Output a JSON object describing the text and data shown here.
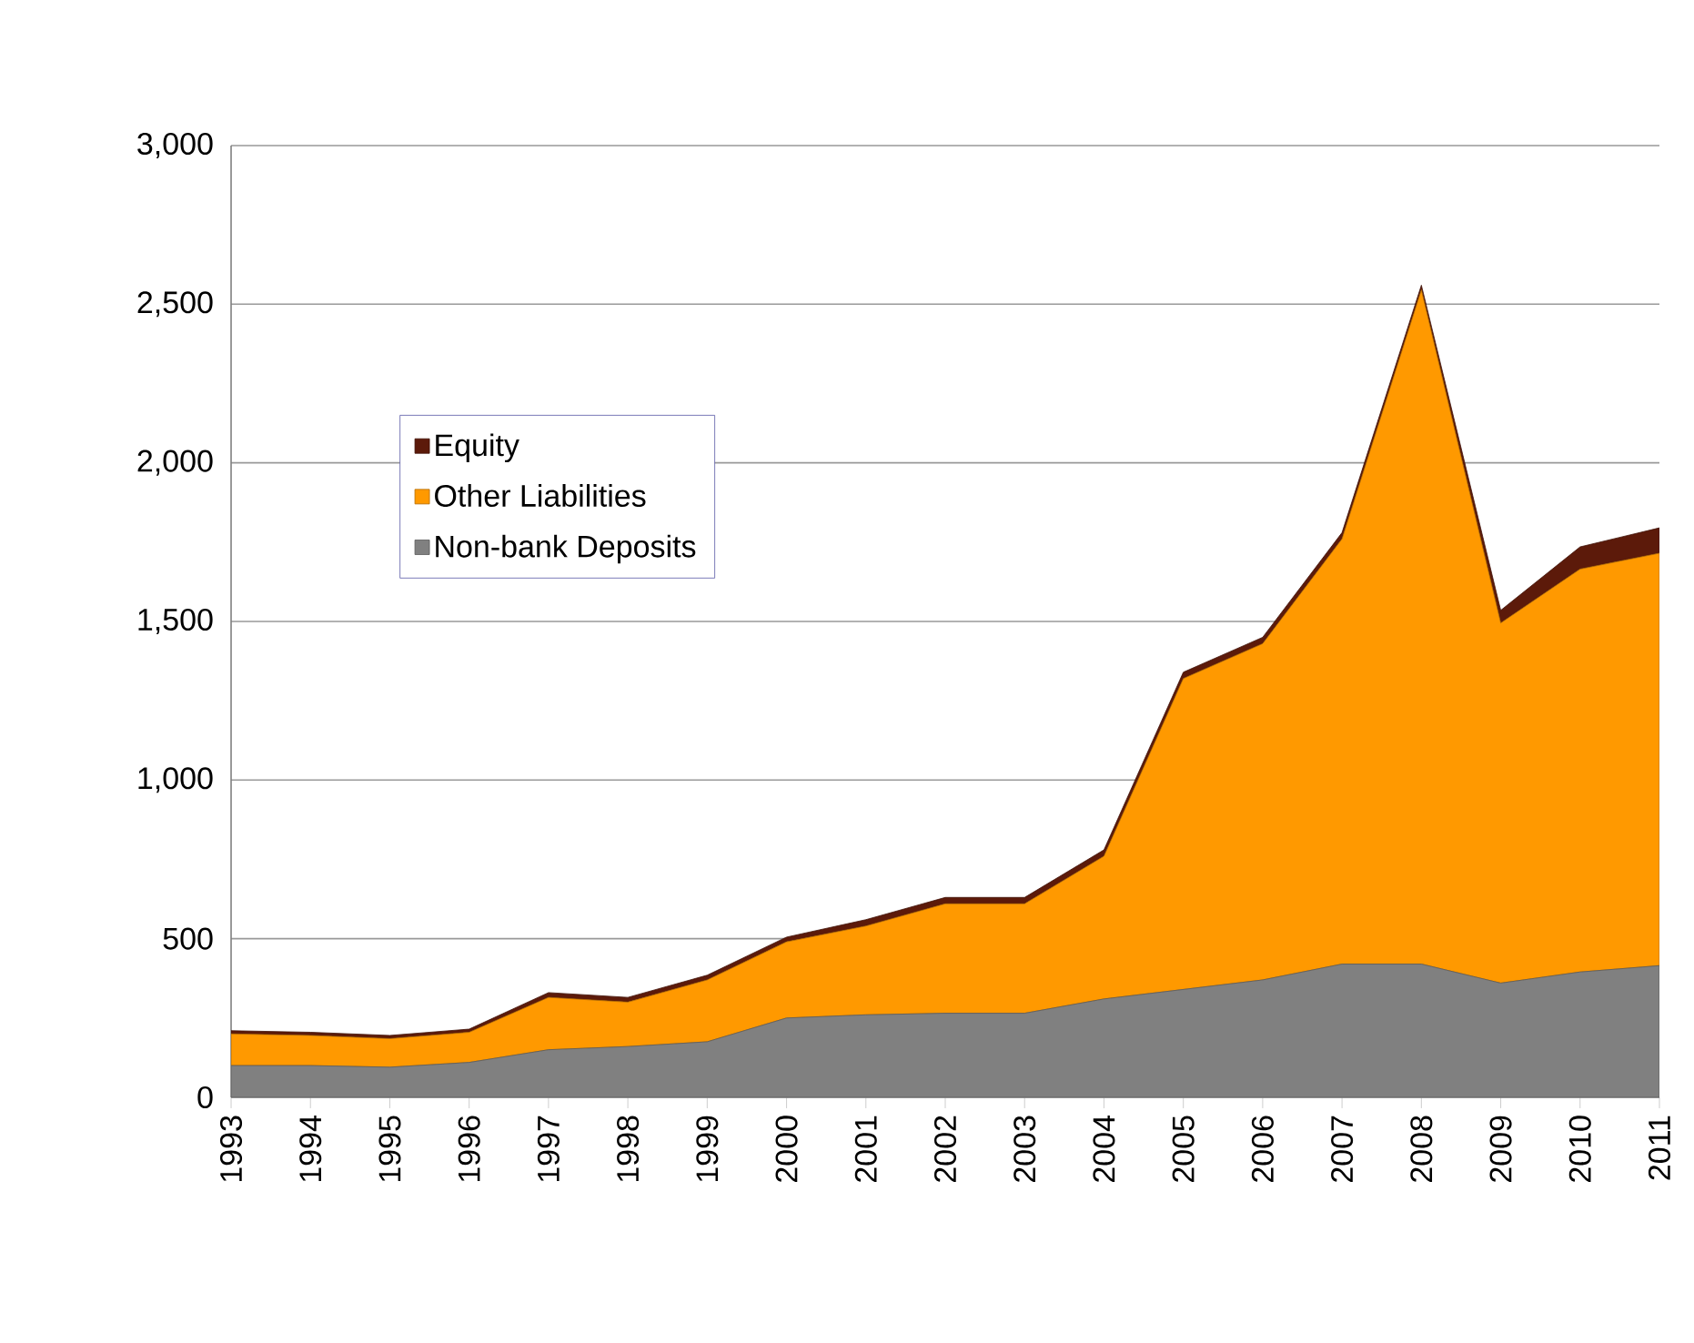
{
  "chart_data": {
    "type": "area",
    "stacked": true,
    "categories": [
      "1993",
      "1994",
      "1995",
      "1996",
      "1997",
      "1998",
      "1999",
      "2000",
      "2001",
      "2002",
      "2003",
      "2004",
      "2005",
      "2006",
      "2007",
      "2008",
      "2009",
      "2010",
      "2011"
    ],
    "series": [
      {
        "name": "Non-bank Deposits",
        "color": "#808080",
        "values": [
          100,
          100,
          95,
          110,
          150,
          160,
          175,
          250,
          260,
          265,
          265,
          310,
          340,
          370,
          420,
          420,
          360,
          395,
          415
        ]
      },
      {
        "name": "Other Liabilities",
        "color": "#ff9900",
        "values": [
          100,
          95,
          90,
          95,
          165,
          140,
          195,
          240,
          280,
          345,
          345,
          450,
          980,
          1060,
          1340,
          2125,
          1135,
          1270,
          1300
        ]
      },
      {
        "name": "Equity",
        "color": "#5c1a0a",
        "values": [
          10,
          10,
          10,
          10,
          15,
          15,
          15,
          15,
          20,
          20,
          20,
          20,
          20,
          20,
          20,
          15,
          40,
          70,
          80
        ]
      }
    ],
    "ylim": [
      0,
      3000
    ],
    "yticks": [
      {
        "value": 0,
        "label": "0"
      },
      {
        "value": 500,
        "label": "500"
      },
      {
        "value": 1000,
        "label": "1,000"
      },
      {
        "value": 1500,
        "label": "1,500"
      },
      {
        "value": 2000,
        "label": "2,000"
      },
      {
        "value": 2500,
        "label": "2,500"
      },
      {
        "value": 3000,
        "label": "3,000"
      }
    ],
    "grid": "y",
    "legend": "top left"
  }
}
